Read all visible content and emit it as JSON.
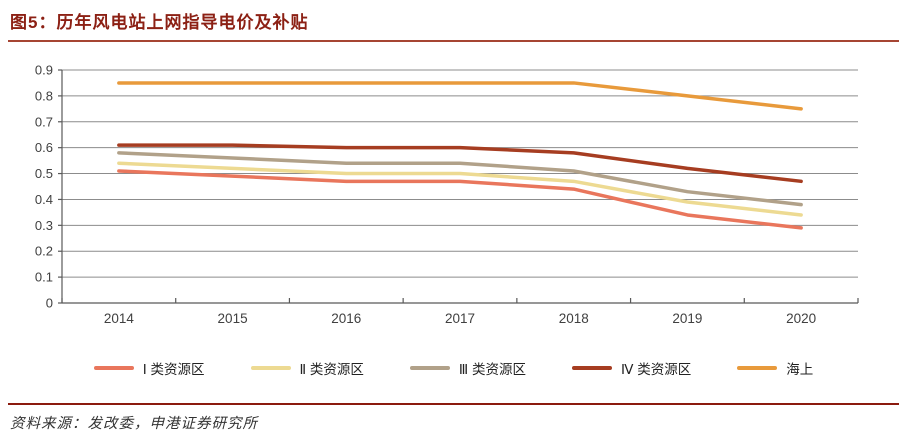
{
  "header": {
    "title": "图5：历年风电站上网指导电价及补贴"
  },
  "footer": {
    "source": "资料来源：发改委，申港证券研究所"
  },
  "colors": {
    "title_text": "#8C2014",
    "title_rule": "#A64533",
    "footer_rule": "#8B1A0E",
    "gridline": "#8C8C8C",
    "axis": "#595959"
  },
  "chart_data": {
    "type": "line",
    "title": "历年风电站上网指导电价及补贴",
    "xlabel": "",
    "ylabel": "",
    "x": [
      "2014",
      "2015",
      "2016",
      "2017",
      "2018",
      "2019",
      "2020"
    ],
    "ylim": [
      0,
      0.9
    ],
    "ytick_step": 0.1,
    "ytick_labels": [
      "0",
      "0.1",
      "0.2",
      "0.3",
      "0.4",
      "0.5",
      "0.6",
      "0.7",
      "0.8",
      "0.9"
    ],
    "grid": true,
    "legend_position": "bottom",
    "series": [
      {
        "name": "Ⅰ 类资源区",
        "color": "#E9765C",
        "values": [
          0.51,
          0.49,
          0.47,
          0.47,
          0.44,
          0.34,
          0.29
        ]
      },
      {
        "name": "Ⅱ 类资源区",
        "color": "#EDDA92",
        "values": [
          0.54,
          0.52,
          0.5,
          0.5,
          0.47,
          0.39,
          0.34
        ]
      },
      {
        "name": "Ⅲ 类资源区",
        "color": "#B1A189",
        "values": [
          0.58,
          0.56,
          0.54,
          0.54,
          0.51,
          0.43,
          0.38
        ]
      },
      {
        "name": "Ⅳ 类资源区",
        "color": "#A63D21",
        "values": [
          0.61,
          0.61,
          0.6,
          0.6,
          0.58,
          0.52,
          0.47
        ]
      },
      {
        "name": "海上",
        "color": "#E89A3B",
        "values": [
          0.85,
          0.85,
          0.85,
          0.85,
          0.85,
          0.8,
          0.75
        ]
      }
    ]
  }
}
